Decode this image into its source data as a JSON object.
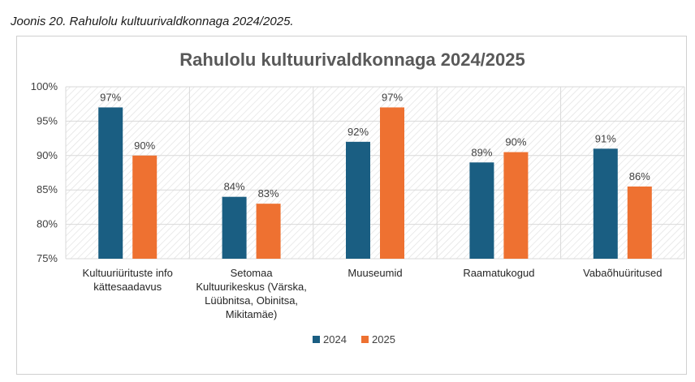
{
  "caption": "Joonis 20. Rahulolu kultuurivaldkonnaga 2024/2025.",
  "chart_data": {
    "type": "bar",
    "title": "Rahulolu kultuurivaldkonnaga 2024/2025",
    "categories": [
      [
        "Kultuuriürituste info",
        "kättesaadavus"
      ],
      [
        "Setomaa",
        "Kultuurikeskus (Värska,",
        "Lüübnitsa, Obinitsa,",
        "Mikitamäe)"
      ],
      [
        "Muuseumid"
      ],
      [
        "Raamatukogud"
      ],
      [
        "Vabaõhuüritused"
      ]
    ],
    "series": [
      {
        "name": "2024",
        "values": [
          97,
          84,
          92,
          89,
          91
        ],
        "labels": [
          "97%",
          "84%",
          "92%",
          "89%",
          "91%"
        ],
        "color": "#1a5e82"
      },
      {
        "name": "2025",
        "values": [
          90,
          83,
          97,
          90.5,
          85.5
        ],
        "labels": [
          "90%",
          "83%",
          "97%",
          "90%",
          "86%"
        ],
        "color": "#ee7131"
      }
    ],
    "ylim": [
      75,
      100
    ],
    "yticks": [
      75,
      80,
      85,
      90,
      95,
      100
    ],
    "ytick_labels": [
      "75%",
      "80%",
      "85%",
      "90%",
      "95%",
      "100%"
    ],
    "grid": true,
    "legend": "bottom"
  }
}
